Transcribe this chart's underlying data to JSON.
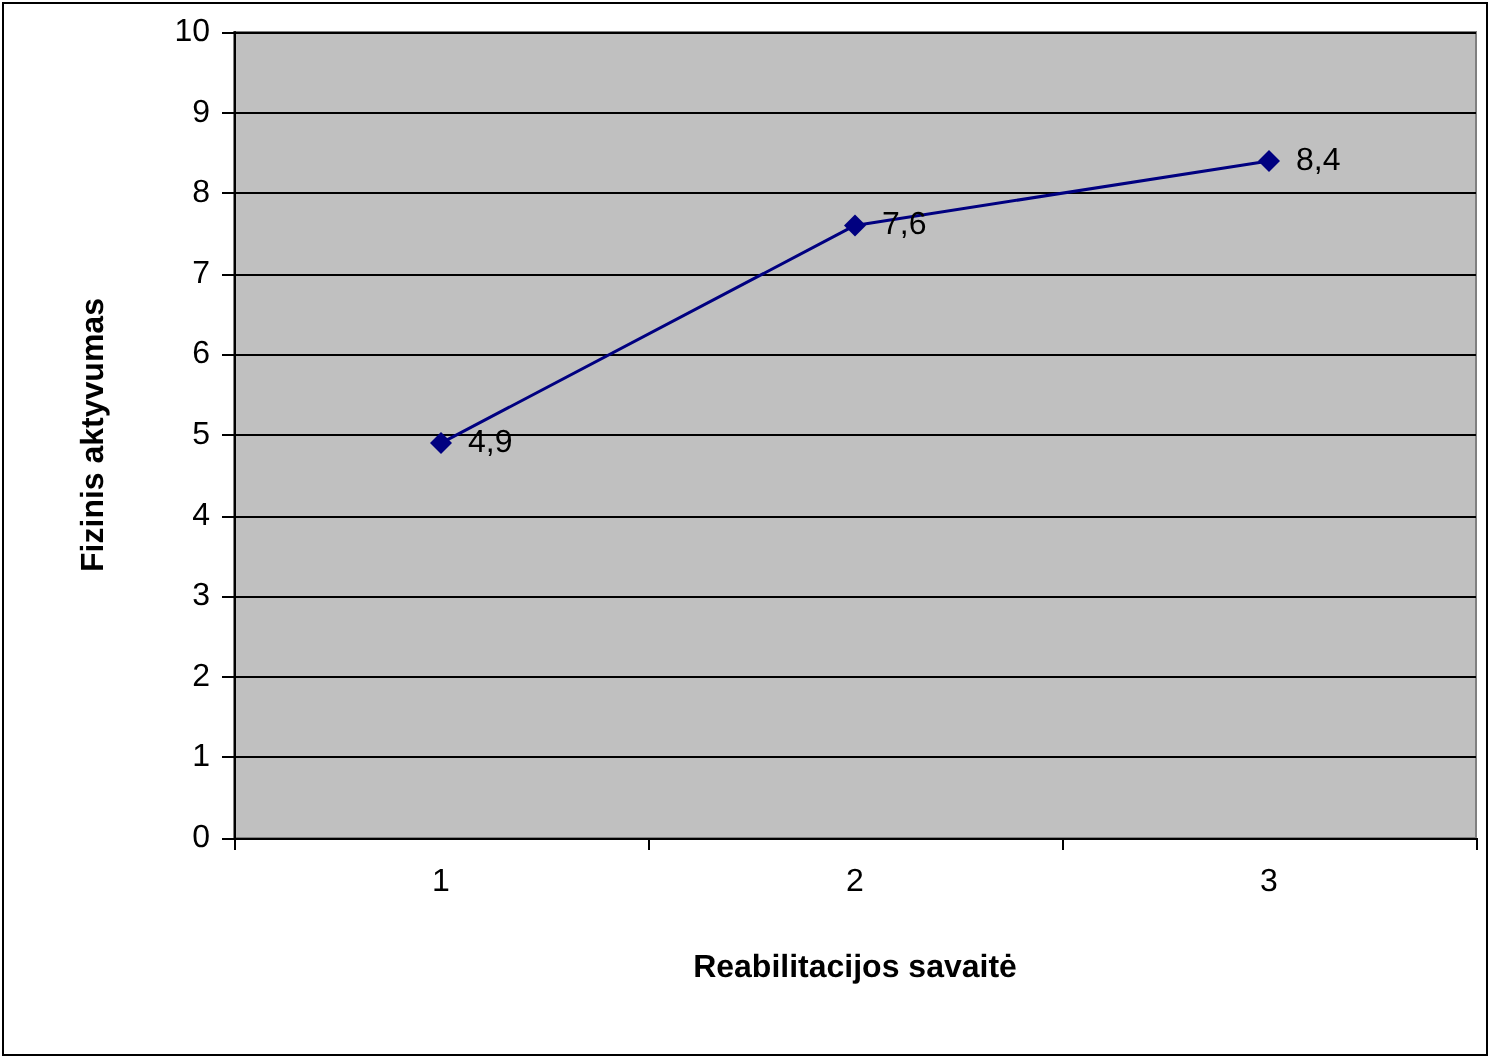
{
  "chart_data": {
    "type": "line",
    "xlabel": "Reabilitacijos savaitė",
    "ylabel": "Fizinis aktyvumas",
    "categories": [
      "1",
      "2",
      "3"
    ],
    "series": [
      {
        "color": "#000080",
        "values": [
          4.9,
          7.6,
          8.4
        ],
        "value_labels": [
          "4,9",
          "7,6",
          "8,4"
        ]
      }
    ],
    "ylim": [
      0,
      10
    ],
    "yticks": [
      0,
      1,
      2,
      3,
      4,
      5,
      6,
      7,
      8,
      9,
      10
    ],
    "grid": "y",
    "marker": "diamond",
    "line_style": "solid"
  }
}
